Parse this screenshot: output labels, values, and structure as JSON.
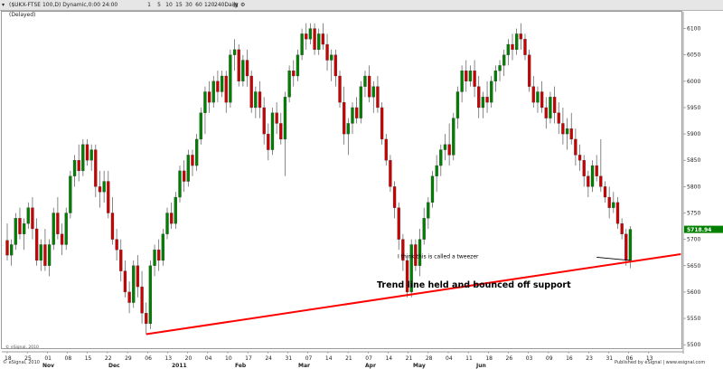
{
  "toolbar": {
    "symbol_title": "($UKX-FTSE 100,D) Dynamic,0:00 24:00 (Delayed)",
    "buttons": [
      "1",
      "5",
      "10",
      "15",
      "30",
      "60",
      "120",
      "240",
      "Daily"
    ],
    "icons": [
      "chart-type-icon",
      "settings-icon",
      "close-icon"
    ]
  },
  "footer": {
    "copyright": "© eSignal, 2010",
    "published": "Published by eSignal | www.esignal.com"
  },
  "chart_data": {
    "type": "candlestick",
    "title": "($UKX-FTSE 100,D) Dynamic,0:00 24:00 (Delayed)",
    "ylim": [
      5490,
      6125
    ],
    "y_ticks": [
      5500,
      5550,
      5600,
      5650,
      5700,
      5750,
      5800,
      5850,
      5900,
      5950,
      6000,
      6050,
      6100
    ],
    "last_price": "5718.94",
    "day_labels": [
      "18",
      "25",
      "01",
      "08",
      "15",
      "22",
      "29",
      "06",
      "13",
      "20",
      "04",
      "10",
      "17",
      "24",
      "31",
      "07",
      "14",
      "21",
      "07",
      "14",
      "21",
      "28",
      "04",
      "11",
      "18",
      "26",
      "03",
      "09",
      "16",
      "23",
      "31",
      "06",
      "13"
    ],
    "month_labels": [
      "Nov",
      "Dec",
      "2011",
      "Feb",
      "Mar",
      "Apr",
      "May",
      "Jun"
    ],
    "up_color": "#008000",
    "down_color": "#cc0000",
    "candles": [
      {
        "o": 5698,
        "h": 5730,
        "l": 5660,
        "c": 5670
      },
      {
        "o": 5670,
        "h": 5700,
        "l": 5650,
        "c": 5690
      },
      {
        "o": 5690,
        "h": 5750,
        "l": 5680,
        "c": 5740
      },
      {
        "o": 5740,
        "h": 5760,
        "l": 5700,
        "c": 5710
      },
      {
        "o": 5710,
        "h": 5740,
        "l": 5680,
        "c": 5730
      },
      {
        "o": 5730,
        "h": 5770,
        "l": 5720,
        "c": 5760
      },
      {
        "o": 5760,
        "h": 5780,
        "l": 5700,
        "c": 5720
      },
      {
        "o": 5720,
        "h": 5740,
        "l": 5650,
        "c": 5660
      },
      {
        "o": 5660,
        "h": 5700,
        "l": 5640,
        "c": 5690
      },
      {
        "o": 5690,
        "h": 5720,
        "l": 5640,
        "c": 5650
      },
      {
        "o": 5650,
        "h": 5700,
        "l": 5630,
        "c": 5690
      },
      {
        "o": 5690,
        "h": 5760,
        "l": 5680,
        "c": 5750
      },
      {
        "o": 5750,
        "h": 5780,
        "l": 5700,
        "c": 5710
      },
      {
        "o": 5710,
        "h": 5730,
        "l": 5670,
        "c": 5690
      },
      {
        "o": 5690,
        "h": 5760,
        "l": 5680,
        "c": 5750
      },
      {
        "o": 5750,
        "h": 5830,
        "l": 5740,
        "c": 5820
      },
      {
        "o": 5820,
        "h": 5860,
        "l": 5800,
        "c": 5850
      },
      {
        "o": 5850,
        "h": 5880,
        "l": 5810,
        "c": 5830
      },
      {
        "o": 5830,
        "h": 5890,
        "l": 5820,
        "c": 5880
      },
      {
        "o": 5880,
        "h": 5890,
        "l": 5840,
        "c": 5850
      },
      {
        "o": 5850,
        "h": 5880,
        "l": 5830,
        "c": 5870
      },
      {
        "o": 5870,
        "h": 5880,
        "l": 5780,
        "c": 5800
      },
      {
        "o": 5800,
        "h": 5830,
        "l": 5760,
        "c": 5790
      },
      {
        "o": 5790,
        "h": 5830,
        "l": 5770,
        "c": 5810
      },
      {
        "o": 5810,
        "h": 5830,
        "l": 5740,
        "c": 5750
      },
      {
        "o": 5750,
        "h": 5780,
        "l": 5690,
        "c": 5700
      },
      {
        "o": 5700,
        "h": 5720,
        "l": 5660,
        "c": 5680
      },
      {
        "o": 5680,
        "h": 5700,
        "l": 5620,
        "c": 5640
      },
      {
        "o": 5640,
        "h": 5660,
        "l": 5590,
        "c": 5600
      },
      {
        "o": 5600,
        "h": 5620,
        "l": 5560,
        "c": 5580
      },
      {
        "o": 5580,
        "h": 5660,
        "l": 5570,
        "c": 5650
      },
      {
        "o": 5650,
        "h": 5670,
        "l": 5590,
        "c": 5610
      },
      {
        "o": 5610,
        "h": 5640,
        "l": 5540,
        "c": 5560
      },
      {
        "o": 5560,
        "h": 5580,
        "l": 5520,
        "c": 5540
      },
      {
        "o": 5540,
        "h": 5660,
        "l": 5530,
        "c": 5650
      },
      {
        "o": 5650,
        "h": 5690,
        "l": 5630,
        "c": 5680
      },
      {
        "o": 5680,
        "h": 5700,
        "l": 5640,
        "c": 5660
      },
      {
        "o": 5660,
        "h": 5720,
        "l": 5650,
        "c": 5710
      },
      {
        "o": 5710,
        "h": 5760,
        "l": 5700,
        "c": 5750
      },
      {
        "o": 5750,
        "h": 5770,
        "l": 5720,
        "c": 5730
      },
      {
        "o": 5730,
        "h": 5790,
        "l": 5720,
        "c": 5780
      },
      {
        "o": 5780,
        "h": 5840,
        "l": 5770,
        "c": 5830
      },
      {
        "o": 5830,
        "h": 5850,
        "l": 5790,
        "c": 5810
      },
      {
        "o": 5810,
        "h": 5870,
        "l": 5800,
        "c": 5860
      },
      {
        "o": 5860,
        "h": 5870,
        "l": 5820,
        "c": 5840
      },
      {
        "o": 5840,
        "h": 5900,
        "l": 5830,
        "c": 5890
      },
      {
        "o": 5890,
        "h": 5950,
        "l": 5880,
        "c": 5940
      },
      {
        "o": 5940,
        "h": 5990,
        "l": 5900,
        "c": 5980
      },
      {
        "o": 5980,
        "h": 6000,
        "l": 5940,
        "c": 5960
      },
      {
        "o": 5960,
        "h": 6010,
        "l": 5950,
        "c": 6000
      },
      {
        "o": 6000,
        "h": 6020,
        "l": 5960,
        "c": 5980
      },
      {
        "o": 5980,
        "h": 6020,
        "l": 5970,
        "c": 6010
      },
      {
        "o": 6010,
        "h": 6020,
        "l": 5940,
        "c": 5960
      },
      {
        "o": 5960,
        "h": 6060,
        "l": 5950,
        "c": 6050
      },
      {
        "o": 6050,
        "h": 6080,
        "l": 6020,
        "c": 6060
      },
      {
        "o": 6060,
        "h": 6070,
        "l": 5990,
        "c": 6000
      },
      {
        "o": 6000,
        "h": 6050,
        "l": 5990,
        "c": 6040
      },
      {
        "o": 6040,
        "h": 6060,
        "l": 5990,
        "c": 6010
      },
      {
        "o": 6010,
        "h": 6020,
        "l": 5940,
        "c": 5950
      },
      {
        "o": 5950,
        "h": 5990,
        "l": 5930,
        "c": 5980
      },
      {
        "o": 5980,
        "h": 6000,
        "l": 5930,
        "c": 5950
      },
      {
        "o": 5950,
        "h": 5970,
        "l": 5880,
        "c": 5900
      },
      {
        "o": 5900,
        "h": 5920,
        "l": 5850,
        "c": 5870
      },
      {
        "o": 5870,
        "h": 5950,
        "l": 5860,
        "c": 5940
      },
      {
        "o": 5940,
        "h": 5960,
        "l": 5900,
        "c": 5920
      },
      {
        "o": 5920,
        "h": 5940,
        "l": 5880,
        "c": 5890
      },
      {
        "o": 5890,
        "h": 5980,
        "l": 5820,
        "c": 5970
      },
      {
        "o": 5970,
        "h": 6030,
        "l": 5960,
        "c": 6020
      },
      {
        "o": 6020,
        "h": 6040,
        "l": 5990,
        "c": 6010
      },
      {
        "o": 6010,
        "h": 6060,
        "l": 6000,
        "c": 6050
      },
      {
        "o": 6050,
        "h": 6100,
        "l": 6040,
        "c": 6090
      },
      {
        "o": 6090,
        "h": 6110,
        "l": 6060,
        "c": 6080
      },
      {
        "o": 6080,
        "h": 6110,
        "l": 6070,
        "c": 6100
      },
      {
        "o": 6100,
        "h": 6110,
        "l": 6050,
        "c": 6060
      },
      {
        "o": 6060,
        "h": 6100,
        "l": 6050,
        "c": 6090
      },
      {
        "o": 6090,
        "h": 6110,
        "l": 6060,
        "c": 6070
      },
      {
        "o": 6070,
        "h": 6090,
        "l": 6020,
        "c": 6040
      },
      {
        "o": 6040,
        "h": 6060,
        "l": 6000,
        "c": 6050
      },
      {
        "o": 6050,
        "h": 6060,
        "l": 5990,
        "c": 6010
      },
      {
        "o": 6010,
        "h": 6020,
        "l": 5950,
        "c": 5960
      },
      {
        "o": 5960,
        "h": 5990,
        "l": 5880,
        "c": 5900
      },
      {
        "o": 5900,
        "h": 5930,
        "l": 5860,
        "c": 5920
      },
      {
        "o": 5920,
        "h": 5960,
        "l": 5900,
        "c": 5950
      },
      {
        "o": 5950,
        "h": 5970,
        "l": 5920,
        "c": 5930
      },
      {
        "o": 5930,
        "h": 6000,
        "l": 5920,
        "c": 5990
      },
      {
        "o": 5990,
        "h": 6020,
        "l": 5970,
        "c": 6010
      },
      {
        "o": 6010,
        "h": 6030,
        "l": 5960,
        "c": 5970
      },
      {
        "o": 5970,
        "h": 6000,
        "l": 5940,
        "c": 5990
      },
      {
        "o": 5990,
        "h": 6010,
        "l": 5940,
        "c": 5950
      },
      {
        "o": 5950,
        "h": 5960,
        "l": 5880,
        "c": 5890
      },
      {
        "o": 5890,
        "h": 5900,
        "l": 5840,
        "c": 5850
      },
      {
        "o": 5850,
        "h": 5860,
        "l": 5790,
        "c": 5800
      },
      {
        "o": 5800,
        "h": 5810,
        "l": 5740,
        "c": 5760
      },
      {
        "o": 5760,
        "h": 5770,
        "l": 5680,
        "c": 5700
      },
      {
        "o": 5700,
        "h": 5710,
        "l": 5640,
        "c": 5660
      },
      {
        "o": 5660,
        "h": 5670,
        "l": 5590,
        "c": 5600
      },
      {
        "o": 5600,
        "h": 5700,
        "l": 5590,
        "c": 5690
      },
      {
        "o": 5690,
        "h": 5700,
        "l": 5640,
        "c": 5650
      },
      {
        "o": 5650,
        "h": 5720,
        "l": 5630,
        "c": 5700
      },
      {
        "o": 5700,
        "h": 5760,
        "l": 5690,
        "c": 5740
      },
      {
        "o": 5740,
        "h": 5780,
        "l": 5720,
        "c": 5770
      },
      {
        "o": 5770,
        "h": 5830,
        "l": 5760,
        "c": 5820
      },
      {
        "o": 5820,
        "h": 5860,
        "l": 5790,
        "c": 5840
      },
      {
        "o": 5840,
        "h": 5880,
        "l": 5820,
        "c": 5870
      },
      {
        "o": 5870,
        "h": 5900,
        "l": 5850,
        "c": 5880
      },
      {
        "o": 5880,
        "h": 5920,
        "l": 5840,
        "c": 5860
      },
      {
        "o": 5860,
        "h": 5940,
        "l": 5850,
        "c": 5930
      },
      {
        "o": 5930,
        "h": 5990,
        "l": 5910,
        "c": 5980
      },
      {
        "o": 5980,
        "h": 6030,
        "l": 5960,
        "c": 6020
      },
      {
        "o": 6020,
        "h": 6040,
        "l": 5980,
        "c": 6000
      },
      {
        "o": 6000,
        "h": 6030,
        "l": 5990,
        "c": 6020
      },
      {
        "o": 6020,
        "h": 6040,
        "l": 5970,
        "c": 5990
      },
      {
        "o": 5990,
        "h": 6010,
        "l": 5930,
        "c": 5950
      },
      {
        "o": 5950,
        "h": 5980,
        "l": 5930,
        "c": 5970
      },
      {
        "o": 5970,
        "h": 6000,
        "l": 5940,
        "c": 5960
      },
      {
        "o": 5960,
        "h": 6010,
        "l": 5950,
        "c": 6000
      },
      {
        "o": 6000,
        "h": 6030,
        "l": 5980,
        "c": 6020
      },
      {
        "o": 6020,
        "h": 6040,
        "l": 6000,
        "c": 6030
      },
      {
        "o": 6030,
        "h": 6060,
        "l": 6010,
        "c": 6050
      },
      {
        "o": 6050,
        "h": 6080,
        "l": 6030,
        "c": 6070
      },
      {
        "o": 6070,
        "h": 6090,
        "l": 6040,
        "c": 6060
      },
      {
        "o": 6060,
        "h": 6100,
        "l": 6050,
        "c": 6090
      },
      {
        "o": 6090,
        "h": 6110,
        "l": 6060,
        "c": 6080
      },
      {
        "o": 6080,
        "h": 6090,
        "l": 6040,
        "c": 6050
      },
      {
        "o": 6050,
        "h": 6060,
        "l": 5980,
        "c": 5990
      },
      {
        "o": 5990,
        "h": 6010,
        "l": 5950,
        "c": 5960
      },
      {
        "o": 5960,
        "h": 5990,
        "l": 5940,
        "c": 5980
      },
      {
        "o": 5980,
        "h": 6000,
        "l": 5940,
        "c": 5950
      },
      {
        "o": 5950,
        "h": 5970,
        "l": 5910,
        "c": 5930
      },
      {
        "o": 5930,
        "h": 5980,
        "l": 5920,
        "c": 5970
      },
      {
        "o": 5970,
        "h": 5990,
        "l": 5920,
        "c": 5940
      },
      {
        "o": 5940,
        "h": 5960,
        "l": 5900,
        "c": 5920
      },
      {
        "o": 5920,
        "h": 5950,
        "l": 5880,
        "c": 5900
      },
      {
        "o": 5900,
        "h": 5930,
        "l": 5870,
        "c": 5910
      },
      {
        "o": 5910,
        "h": 5940,
        "l": 5880,
        "c": 5890
      },
      {
        "o": 5890,
        "h": 5910,
        "l": 5840,
        "c": 5860
      },
      {
        "o": 5860,
        "h": 5880,
        "l": 5830,
        "c": 5850
      },
      {
        "o": 5850,
        "h": 5860,
        "l": 5800,
        "c": 5820
      },
      {
        "o": 5820,
        "h": 5830,
        "l": 5780,
        "c": 5800
      },
      {
        "o": 5800,
        "h": 5850,
        "l": 5790,
        "c": 5840
      },
      {
        "o": 5840,
        "h": 5860,
        "l": 5810,
        "c": 5820
      },
      {
        "o": 5820,
        "h": 5890,
        "l": 5790,
        "c": 5800
      },
      {
        "o": 5800,
        "h": 5810,
        "l": 5770,
        "c": 5780
      },
      {
        "o": 5780,
        "h": 5800,
        "l": 5740,
        "c": 5760
      },
      {
        "o": 5760,
        "h": 5790,
        "l": 5750,
        "c": 5770
      },
      {
        "o": 5770,
        "h": 5780,
        "l": 5720,
        "c": 5730
      },
      {
        "o": 5730,
        "h": 5740,
        "l": 5700,
        "c": 5710
      },
      {
        "o": 5710,
        "h": 5720,
        "l": 5650,
        "c": 5660
      },
      {
        "o": 5660,
        "h": 5725,
        "l": 5645,
        "c": 5719
      }
    ],
    "trendline": {
      "x_start_index": 33,
      "y_start": 5520,
      "x_end_index": 160,
      "y_end": 5672
    },
    "annotations": [
      {
        "text": "I think this is called a tweezer"
      },
      {
        "text": "Trend line held and bounced off support"
      }
    ],
    "grid": false
  }
}
